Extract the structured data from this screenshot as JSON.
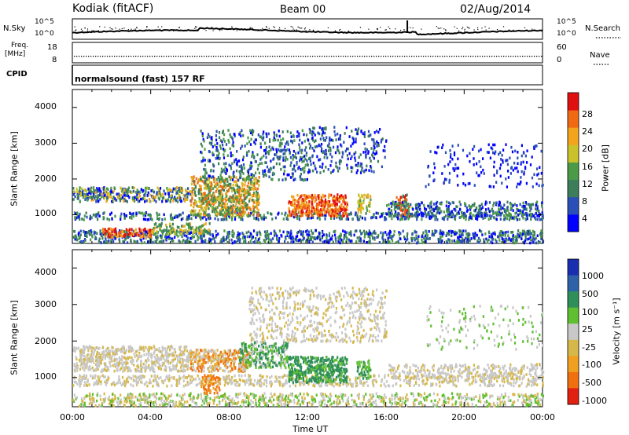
{
  "header": {
    "station": "Kodiak (fitACF)",
    "beam": "Beam 00",
    "date": "02/Aug/2014"
  },
  "noise_panel": {
    "left_label": "N.Sky",
    "right_label": "N.Search",
    "left_ticks": [
      "10^5",
      "10^0"
    ],
    "right_ticks": [
      "10^5",
      "10^0"
    ]
  },
  "freq_panel": {
    "left_label_1": "Freq.",
    "left_label_2": "[MHz]",
    "right_label": "Nave",
    "left_ticks": [
      "18",
      "8"
    ],
    "right_ticks": [
      "60",
      "0"
    ]
  },
  "cpid_panel": {
    "label": "CPID",
    "mode": "normalsound (fast) 157 RF"
  },
  "colors": {
    "power_scale": [
      "#0000ff",
      "#2a4fb8",
      "#3c7d5a",
      "#4a9a48",
      "#c9c22a",
      "#f2a51c",
      "#f06a14",
      "#e01010"
    ],
    "velocity_scale": [
      "#1a2fb0",
      "#2e62a8",
      "#2f8e5a",
      "#5fbf30",
      "#c8c8c8",
      "#d6b84a",
      "#f0a020",
      "#f07010",
      "#e02010"
    ]
  },
  "chart_data": [
    {
      "type": "heatmap",
      "name": "power",
      "ylabel": "Slant Range [km]",
      "yticks": [
        "1000",
        "2000",
        "3000",
        "4000"
      ],
      "ylim": [
        200,
        4500
      ],
      "xlim_hours": [
        0,
        24
      ],
      "colorbar_label": "Power [dB]",
      "colorbar_ticks": [
        "4",
        "8",
        "12",
        "16",
        "20",
        "24",
        "28"
      ]
    },
    {
      "type": "heatmap",
      "name": "velocity",
      "ylabel": "Slant Range [km]",
      "yticks": [
        "1000",
        "2000",
        "3000",
        "4000"
      ],
      "ylim": [
        200,
        4500
      ],
      "xlim_hours": [
        0,
        24
      ],
      "colorbar_label": "Velocity [m s⁻¹]",
      "colorbar_ticks": [
        "1000",
        "500",
        "100",
        "25",
        "-25",
        "-100",
        "-500",
        "-1000"
      ]
    }
  ],
  "xaxis": {
    "label": "Time UT",
    "ticks": [
      "00:00",
      "04:00",
      "08:00",
      "12:00",
      "16:00",
      "20:00",
      "00:00"
    ]
  }
}
